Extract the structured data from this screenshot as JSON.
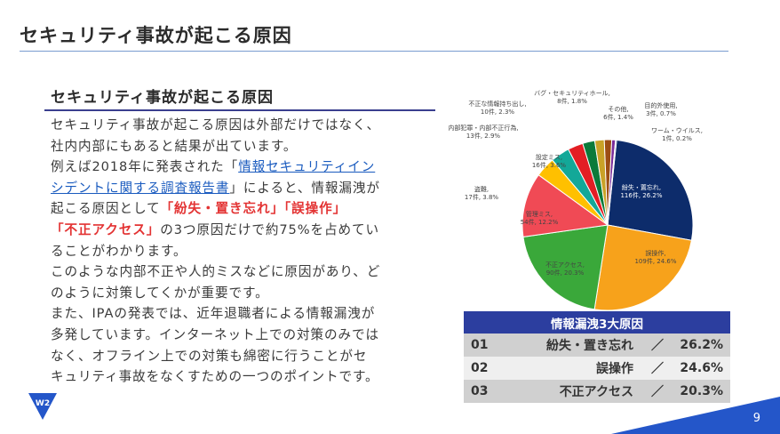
{
  "slide": {
    "title": "セキュリティ事故が起こる原因",
    "page_number": "9",
    "logo_text": "W2"
  },
  "section": {
    "heading": "セキュリティ事故が起こる原因",
    "lines": [
      "セキュリティ事故が起こる原因は外部だけではなく、",
      "社内内部にもあると結果が出ています。",
      [
        "例えば2018年に発表された「",
        "情報セキュリティイン"
      ],
      [
        "シデントに関する調査報告書",
        "」によると、情報漏洩が"
      ],
      [
        "起こる原因として",
        "「紛失・置き忘れ」「誤操作」"
      ],
      [
        "「不正アクセス」",
        "の3つ原因だけで約75%を占めてい"
      ],
      "ることがわかります。",
      "このような内部不正や人的ミスなどに原因があり、ど",
      "のように対策してくかが重要です。",
      "また、IPAの発表では、近年退職者による情報漏洩が",
      "多発しています。インターネット上での対策のみでは",
      "なく、オフライン上での対策も綿密に行うことがセ",
      "キュリティ事故をなくすための一つのポイントです。"
    ]
  },
  "chart_data": {
    "type": "pie",
    "slices": [
      {
        "name": "紛失・置忘れ",
        "count": "116件",
        "value": 26.2,
        "pct": "26.2%",
        "color": "#0d2c6b"
      },
      {
        "name": "誤操作",
        "count": "109件",
        "value": 24.6,
        "pct": "24.6%",
        "color": "#f7a21b"
      },
      {
        "name": "不正アクセス",
        "count": "90件",
        "value": 20.3,
        "pct": "20.3%",
        "color": "#3aa83a"
      },
      {
        "name": "管理ミス",
        "count": "54件",
        "value": 12.2,
        "pct": "12.2%",
        "color": "#f04a55"
      },
      {
        "name": "盗難",
        "count": "17件",
        "value": 3.8,
        "pct": "3.8%",
        "color": "#ffc000"
      },
      {
        "name": "設定ミス",
        "count": "16件",
        "value": 3.6,
        "pct": "3.6%",
        "color": "#13a898"
      },
      {
        "name": "内部犯罪・内部不正行為",
        "count": "13件",
        "value": 2.9,
        "pct": "2.9%",
        "color": "#e31e24"
      },
      {
        "name": "不正な情報持ち出し",
        "count": "10件",
        "value": 2.3,
        "pct": "2.3%",
        "color": "#0b7a3a"
      },
      {
        "name": "バグ・セキュリティホール",
        "count": "8件",
        "value": 1.8,
        "pct": "1.8%",
        "color": "#c9a227"
      },
      {
        "name": "その他",
        "count": "6件",
        "value": 1.4,
        "pct": "1.4%",
        "color": "#9c4e14"
      },
      {
        "name": "目的外使用",
        "count": "3件",
        "value": 0.7,
        "pct": "0.7%",
        "color": "#7a2c9a"
      },
      {
        "name": "ワーム・ウイルス",
        "count": "1件",
        "value": 0.2,
        "pct": "0.2%",
        "color": "#1f4fa0"
      }
    ]
  },
  "table": {
    "header": "情報漏洩3大原因",
    "separator": "／",
    "rows": [
      {
        "no": "01",
        "cause": "紛失・置き忘れ",
        "pct": "26.2%"
      },
      {
        "no": "02",
        "cause": "誤操作",
        "pct": "24.6%"
      },
      {
        "no": "03",
        "cause": "不正アクセス",
        "pct": "20.3%"
      }
    ]
  }
}
